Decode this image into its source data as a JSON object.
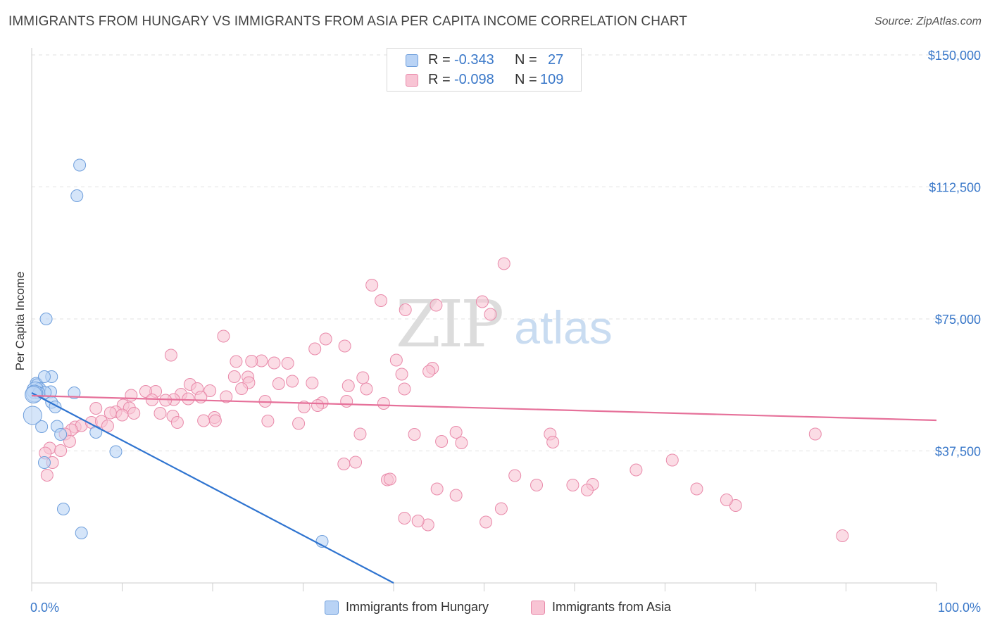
{
  "title": "IMMIGRANTS FROM HUNGARY VS IMMIGRANTS FROM ASIA PER CAPITA INCOME CORRELATION CHART",
  "source": "Source: ZipAtlas.com",
  "colors": {
    "hungary_fill": "#b9d3f5",
    "hungary_stroke": "#6f9fdc",
    "hungary_line": "#2f74d0",
    "asia_fill": "#f8c4d4",
    "asia_stroke": "#e98aaa",
    "asia_line": "#e6719a",
    "axis_label": "#3a78c9",
    "grid": "#e2e2e2"
  },
  "legend_top": {
    "rows": [
      {
        "r_label": "R =",
        "r_value": "-0.343",
        "n_label": "N =",
        "n_value": "27"
      },
      {
        "r_label": "R =",
        "r_value": "-0.098",
        "n_label": "N =",
        "n_value": "109"
      }
    ]
  },
  "chart_data": {
    "type": "scatter",
    "title": "IMMIGRANTS FROM HUNGARY VS IMMIGRANTS FROM ASIA PER CAPITA INCOME CORRELATION CHART",
    "xlabel": "",
    "ylabel": "Per Capita Income",
    "xlim": [
      0,
      100
    ],
    "ylim": [
      0,
      150000
    ],
    "x_tick_labels": [
      "0.0%",
      "100.0%"
    ],
    "y_ticks": [
      37500,
      75000,
      112500,
      150000
    ],
    "y_tick_labels": [
      "$37,500",
      "$75,000",
      "$112,500",
      "$150,000"
    ],
    "watermark": {
      "zip": "ZIP",
      "atlas": "atlas"
    },
    "series": [
      {
        "name": "Immigrants from Hungary",
        "x": [
          5.3,
          5.0,
          1.6,
          0.5,
          0.6,
          0.9,
          0.4,
          2.1,
          2.2,
          1.4,
          1.5,
          4.7,
          0.8,
          0.3,
          0.2,
          2.2,
          2.6,
          2.8,
          1.1,
          3.2,
          7.1,
          9.3,
          1.4,
          0.1,
          3.5,
          5.5,
          32.1
        ],
        "y": [
          118700,
          110000,
          75000,
          56700,
          56300,
          55200,
          54700,
          54300,
          58600,
          58600,
          54100,
          54000,
          54000,
          53800,
          53500,
          51300,
          50000,
          44500,
          44400,
          42200,
          42800,
          37300,
          34200,
          47600,
          21000,
          14200,
          11800
        ]
      },
      {
        "name": "Immigrants from Asia",
        "x": [
          52.2,
          37.6,
          38.6,
          49.8,
          44.7,
          41.3,
          50.7,
          21.2,
          32.5,
          34.6,
          31.3,
          15.4,
          25.4,
          22.6,
          24.3,
          26.8,
          28.3,
          40.3,
          44.3,
          43.9,
          40.9,
          23.9,
          36.6,
          22.4,
          28.8,
          24.0,
          31.0,
          17.5,
          27.3,
          35.0,
          18.3,
          23.2,
          37.0,
          41.2,
          19.7,
          13.7,
          12.6,
          11.0,
          16.5,
          21.5,
          18.7,
          17.3,
          15.7,
          13.3,
          14.8,
          25.8,
          34.8,
          32.1,
          38.9,
          31.6,
          30.1,
          10.1,
          10.8,
          7.1,
          9.3,
          8.7,
          14.2,
          11.3,
          15.6,
          10.0,
          20.2,
          20.3,
          19.0,
          26.1,
          16.1,
          29.5,
          4.8,
          5.5,
          6.6,
          7.7,
          4.4,
          3.7,
          4.2,
          2.0,
          1.5,
          3.2,
          2.3,
          8.4,
          46.9,
          42.3,
          36.3,
          57.3,
          45.3,
          47.5,
          57.6,
          59.8,
          73.5,
          77.8,
          86.6,
          66.8,
          70.8,
          55.8,
          46.9,
          53.4,
          50.2,
          43.8,
          41.2,
          44.8,
          42.7,
          34.5,
          35.8,
          39.3,
          39.6,
          51.9,
          62.0,
          61.4,
          76.8,
          89.6,
          1.7
        ],
        "y": [
          90700,
          84600,
          80200,
          79900,
          78900,
          77600,
          76300,
          70100,
          69300,
          67300,
          66500,
          64700,
          63100,
          62900,
          63000,
          62500,
          62400,
          63300,
          61000,
          60100,
          59300,
          58500,
          58300,
          58600,
          57300,
          56900,
          56800,
          56400,
          56600,
          56000,
          55200,
          55200,
          55100,
          55100,
          54600,
          54400,
          54400,
          53300,
          53600,
          52900,
          52800,
          52300,
          52100,
          52000,
          51900,
          51600,
          51600,
          51200,
          51000,
          50400,
          50000,
          50500,
          49700,
          49600,
          48600,
          48300,
          48200,
          48200,
          47400,
          47700,
          47000,
          46100,
          46100,
          46000,
          45600,
          45300,
          44300,
          44700,
          45600,
          45900,
          43500,
          42300,
          40200,
          38300,
          36900,
          37600,
          34200,
          44600,
          42800,
          42200,
          42300,
          42300,
          40200,
          39800,
          40000,
          27800,
          26700,
          22000,
          42300,
          32100,
          34900,
          27800,
          24900,
          30500,
          17300,
          16500,
          18400,
          26700,
          17600,
          33800,
          34300,
          29300,
          29500,
          21100,
          28000,
          26400,
          23600,
          13400,
          30600
        ]
      }
    ],
    "trend_lines": [
      {
        "name": "Immigrants from Hungary",
        "x": [
          0,
          40
        ],
        "y": [
          54000,
          0
        ]
      },
      {
        "name": "Immigrants from Asia",
        "x": [
          0,
          100
        ],
        "y": [
          53200,
          46200
        ]
      }
    ],
    "legend": [
      "Immigrants from Hungary",
      "Immigrants from Asia"
    ],
    "legend_position": "bottom-center",
    "grid": true
  }
}
